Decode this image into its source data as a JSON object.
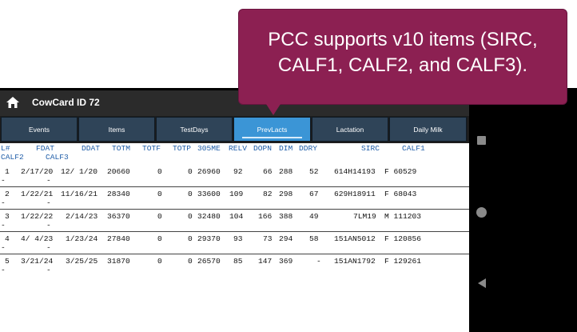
{
  "app": {
    "title": "CowCard ID 72"
  },
  "tabs": [
    {
      "label": "Events"
    },
    {
      "label": "Items"
    },
    {
      "label": "TestDays"
    },
    {
      "label": "PrevLacts",
      "active": true
    },
    {
      "label": "Lactation"
    },
    {
      "label": "Daily Milk"
    }
  ],
  "table": {
    "headers": {
      "lno": "L#",
      "fdat": "FDAT",
      "ddat": "DDAT",
      "totm": "TOTM",
      "totf": "TOTF",
      "totp": "TOTP",
      "me305": "305ME",
      "relv": "RELV",
      "dopn": "DOPN",
      "dim": "DIM",
      "ddry": "DDRY",
      "sirc": "SIRC",
      "calf1": "CALF1",
      "calf2": "CALF2",
      "calf3": "CALF3"
    },
    "rows": [
      {
        "lno": "1",
        "fdat": "2/17/20",
        "ddat": "12/ 1/20",
        "totm": "20660",
        "totf": "0",
        "totp": "0",
        "me305": "26960",
        "relv": "92",
        "dopn": "66",
        "dim": "288",
        "ddry": "52",
        "sirc": "614H14193",
        "calf1": "F 60529",
        "calf2": "-",
        "calf3": "-"
      },
      {
        "lno": "2",
        "fdat": "1/22/21",
        "ddat": "11/16/21",
        "totm": "28340",
        "totf": "0",
        "totp": "0",
        "me305": "33600",
        "relv": "109",
        "dopn": "82",
        "dim": "298",
        "ddry": "67",
        "sirc": "629H18911",
        "calf1": "F 68043",
        "calf2": "-",
        "calf3": "-"
      },
      {
        "lno": "3",
        "fdat": "1/22/22",
        "ddat": "2/14/23",
        "totm": "36370",
        "totf": "0",
        "totp": "0",
        "me305": "32480",
        "relv": "104",
        "dopn": "166",
        "dim": "388",
        "ddry": "49",
        "sirc": "7LM19",
        "calf1": "M 111203",
        "calf2": "-",
        "calf3": "-"
      },
      {
        "lno": "4",
        "fdat": "4/ 4/23",
        "ddat": "1/23/24",
        "totm": "27840",
        "totf": "0",
        "totp": "0",
        "me305": "29370",
        "relv": "93",
        "dopn": "73",
        "dim": "294",
        "ddry": "58",
        "sirc": "151AN5012",
        "calf1": "F 120856",
        "calf2": "-",
        "calf3": "-"
      },
      {
        "lno": "5",
        "fdat": "3/21/24",
        "ddat": "3/25/25",
        "totm": "31870",
        "totf": "0",
        "totp": "0",
        "me305": "26570",
        "relv": "85",
        "dopn": "147",
        "dim": "369",
        "ddry": "-",
        "sirc": "151AN1792",
        "calf1": "F 129261",
        "calf2": "-",
        "calf3": "-"
      }
    ]
  },
  "callout": {
    "line1": "PCC supports v10 items (SIRC,",
    "line2": "CALF1, CALF2, and CALF3)."
  },
  "nav": {
    "recents": "square-icon",
    "home": "circle-icon",
    "back": "triangle-back-icon"
  },
  "colors": {
    "active_tab": "#3b95d6",
    "tab": "#2f4458",
    "header_text": "#1f5da8",
    "callout": "#8c2052"
  }
}
